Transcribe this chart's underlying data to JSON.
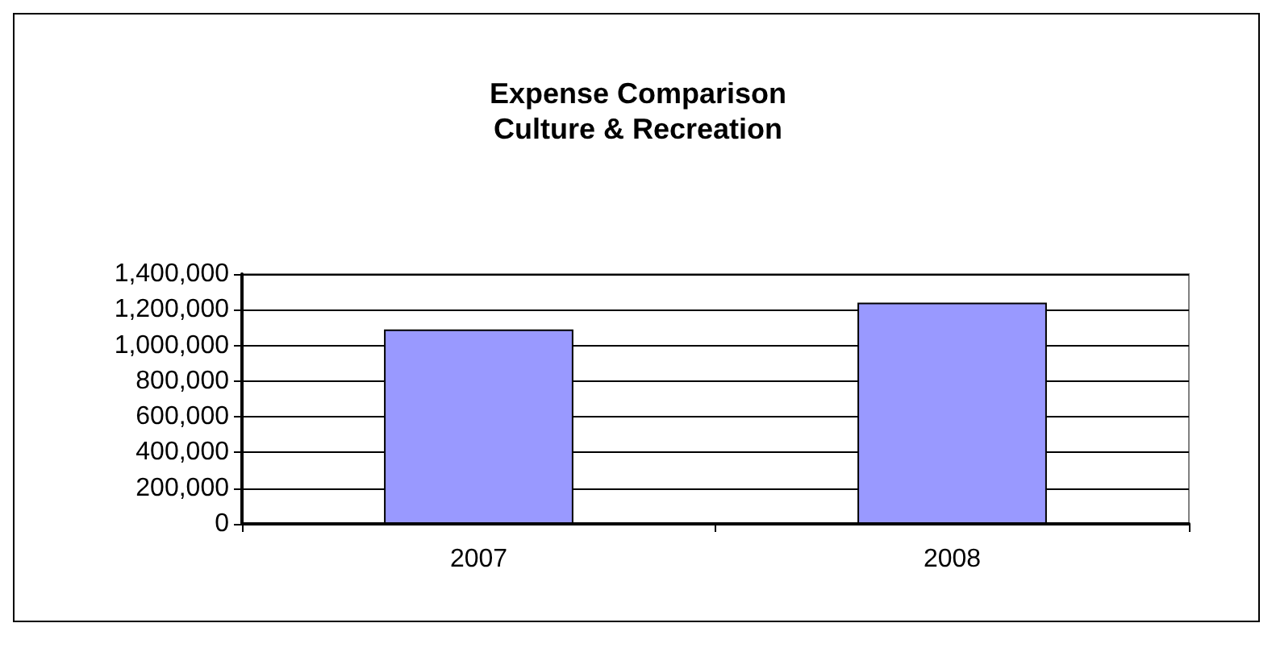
{
  "chart_data": {
    "type": "bar",
    "title": "Expense Comparison\nCulture & Recreation",
    "categories": [
      "2007",
      "2008"
    ],
    "values": [
      1090000,
      1240000
    ],
    "color": "#9999ff",
    "ylim": [
      0,
      1400000
    ],
    "yticks": [
      0,
      {
        "value": 200000,
        "label": "200,000"
      },
      {
        "value": 400000,
        "label": "400,000"
      },
      {
        "value": 600000,
        "label": "600,000"
      },
      {
        "value": 800000,
        "label": "800,000"
      },
      {
        "value": 1000000,
        "label": "1,000,000"
      },
      {
        "value": 1200000,
        "label": "1,200,000"
      },
      {
        "value": 1400000,
        "label": "1,400,000"
      }
    ],
    "grid": "y"
  }
}
